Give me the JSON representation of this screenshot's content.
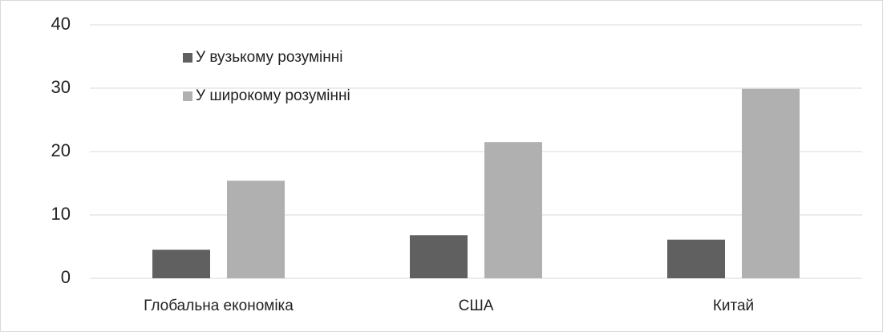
{
  "chart_data": {
    "type": "bar",
    "categories": [
      "Глобальна економіка",
      "США",
      "Китай"
    ],
    "series": [
      {
        "name": "У вузькому розумінні",
        "color": "#606060",
        "values": [
          4.5,
          6.8,
          6.1
        ]
      },
      {
        "name": "У широкому розумінні",
        "color": "#b0b0b0",
        "values": [
          15.4,
          21.5,
          29.9
        ]
      }
    ],
    "ylim": [
      0,
      40
    ],
    "yticks": [
      0,
      10,
      20,
      30,
      40
    ],
    "grid": true,
    "legend": "top-left"
  }
}
